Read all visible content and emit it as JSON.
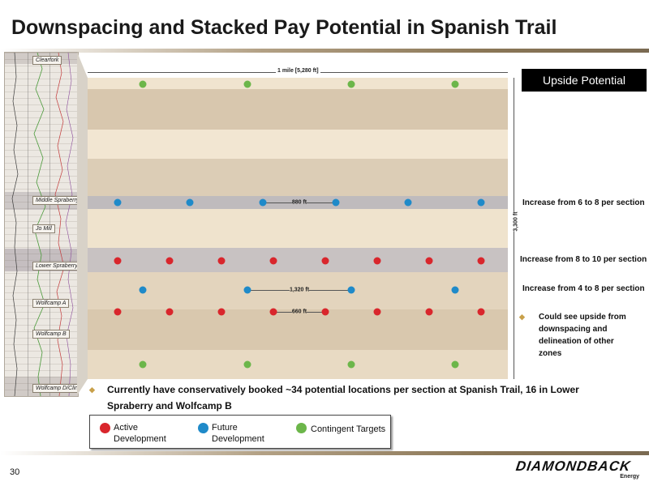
{
  "title": "Downspacing and Stacked Pay Potential in Spanish Trail",
  "log_zones": [
    "Clearfork",
    "Middle Spraberry Shale",
    "Jo Mill",
    "Lower Spraberry Shale",
    "Wolfcamp A",
    "Wolfcamp B",
    "Wolfcamp D/Cline"
  ],
  "dimensions": {
    "mile": "1 mile [5,280 ft]",
    "depth": "3,300 ft",
    "spacing_880": "880 ft",
    "spacing_1320": "1,320 ft",
    "spacing_660": "660 ft"
  },
  "upside_box": "Upside Potential",
  "right_notes": {
    "note1": "Increase from 6 to 8 per section",
    "note2": "Increase from 8 to 10 per section",
    "note3": "Increase from 4 to 8 per section",
    "bullet": "Could see upside from downspacing and delineation of other zones"
  },
  "bottom_note": "Currently have conservatively booked ~34 potential locations per section at Spanish Trail, 16 in Lower Spraberry and Wolfcamp B",
  "legend": {
    "active": "Active Development",
    "future": "Future Development",
    "contingent": "Contingent Targets"
  },
  "colors": {
    "active": "#d9262c",
    "future": "#1f8ac9",
    "contingent": "#6cb64a",
    "accent": "#c8a04a"
  },
  "wells_per_row": {
    "top_contingent": 4,
    "middle_spraberry": 6,
    "lower_spraberry": 8,
    "wolfcamp_a_upper": 4,
    "wolfcamp_a_lower": 8,
    "bottom_contingent": 4
  },
  "page_number": "30",
  "logo": {
    "name": "DIAMONDBACK",
    "sub": "Energy"
  }
}
